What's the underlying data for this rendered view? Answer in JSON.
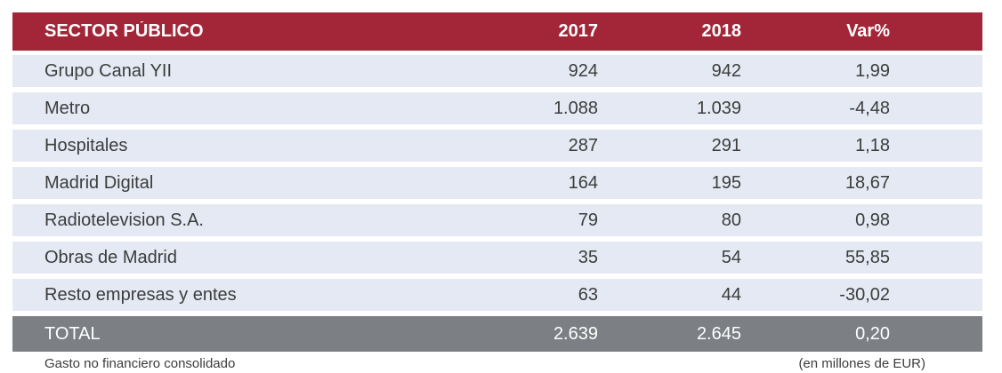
{
  "table": {
    "header": {
      "label": "SECTOR PÚBLICO",
      "col_2017": "2017",
      "col_2018": "2018",
      "col_var": "Var%"
    },
    "rows": [
      {
        "label": "Grupo Canal YII",
        "y2017": "924",
        "y2018": "942",
        "var": "1,99"
      },
      {
        "label": "Metro",
        "y2017": "1.088",
        "y2018": "1.039",
        "var": "-4,48"
      },
      {
        "label": "Hospitales",
        "y2017": "287",
        "y2018": "291",
        "var": "1,18"
      },
      {
        "label": "Madrid Digital",
        "y2017": "164",
        "y2018": "195",
        "var": "18,67"
      },
      {
        "label": "Radiotelevision S.A.",
        "y2017": "79",
        "y2018": "80",
        "var": "0,98"
      },
      {
        "label": "Obras de Madrid",
        "y2017": "35",
        "y2018": "54",
        "var": "55,85"
      },
      {
        "label": "Resto empresas y entes",
        "y2017": "63",
        "y2018": "44",
        "var": "-30,02"
      }
    ],
    "total": {
      "label": "TOTAL",
      "y2017": "2.639",
      "y2018": "2.645",
      "var": "0,20"
    }
  },
  "footer": {
    "left": "Gasto no financiero consolidado",
    "right": "(en millones de EUR)"
  },
  "colors": {
    "header_bg": "#A32638",
    "total_bg": "#7C8085",
    "row_bg": "#E4E9F3",
    "header_text": "#FFFFFF",
    "body_text": "#3C3C3C"
  }
}
